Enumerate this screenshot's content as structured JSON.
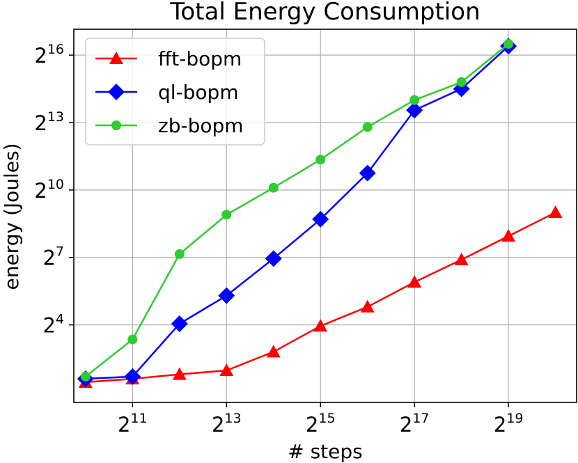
{
  "chart_data": {
    "type": "line",
    "title": "Total Energy Consumption",
    "xlabel": "# steps",
    "ylabel": "energy (Joules)",
    "x_scale": "log2",
    "y_scale": "log2",
    "xlim_log2": [
      9.75,
      20.45
    ],
    "ylim_log2": [
      0.55,
      17.15
    ],
    "grid": true,
    "legend_position": "top-left",
    "x": [
      10,
      11,
      12,
      13,
      14,
      15,
      16,
      17,
      18,
      19,
      20
    ],
    "x_ticks": [
      11,
      13,
      15,
      17,
      19
    ],
    "y_ticks": [
      4,
      7,
      10,
      13,
      16
    ],
    "tick_base": "2",
    "series": [
      {
        "name": "fft-bopm",
        "color": "#ff0000",
        "marker": "triangle",
        "x": [
          10,
          11,
          12,
          13,
          14,
          15,
          16,
          17,
          18,
          19,
          20
        ],
        "values_log2": [
          1.45,
          1.6,
          1.8,
          1.97,
          2.8,
          3.95,
          4.8,
          5.9,
          6.9,
          7.95,
          9.0
        ]
      },
      {
        "name": "ql-bopm",
        "color": "#0000ff",
        "marker": "diamond",
        "x": [
          10,
          11,
          12,
          13,
          14,
          15,
          16,
          17,
          18,
          19
        ],
        "values_log2": [
          1.6,
          1.7,
          4.05,
          5.3,
          6.95,
          8.7,
          10.75,
          13.55,
          14.5,
          16.4
        ]
      },
      {
        "name": "zb-bopm",
        "color": "#2ecc2e",
        "marker": "circle",
        "x": [
          10,
          11,
          12,
          13,
          14,
          15,
          16,
          17,
          18,
          19
        ],
        "values_log2": [
          1.7,
          3.35,
          7.15,
          8.9,
          10.1,
          11.35,
          12.8,
          14.0,
          14.8,
          16.5
        ]
      }
    ]
  }
}
